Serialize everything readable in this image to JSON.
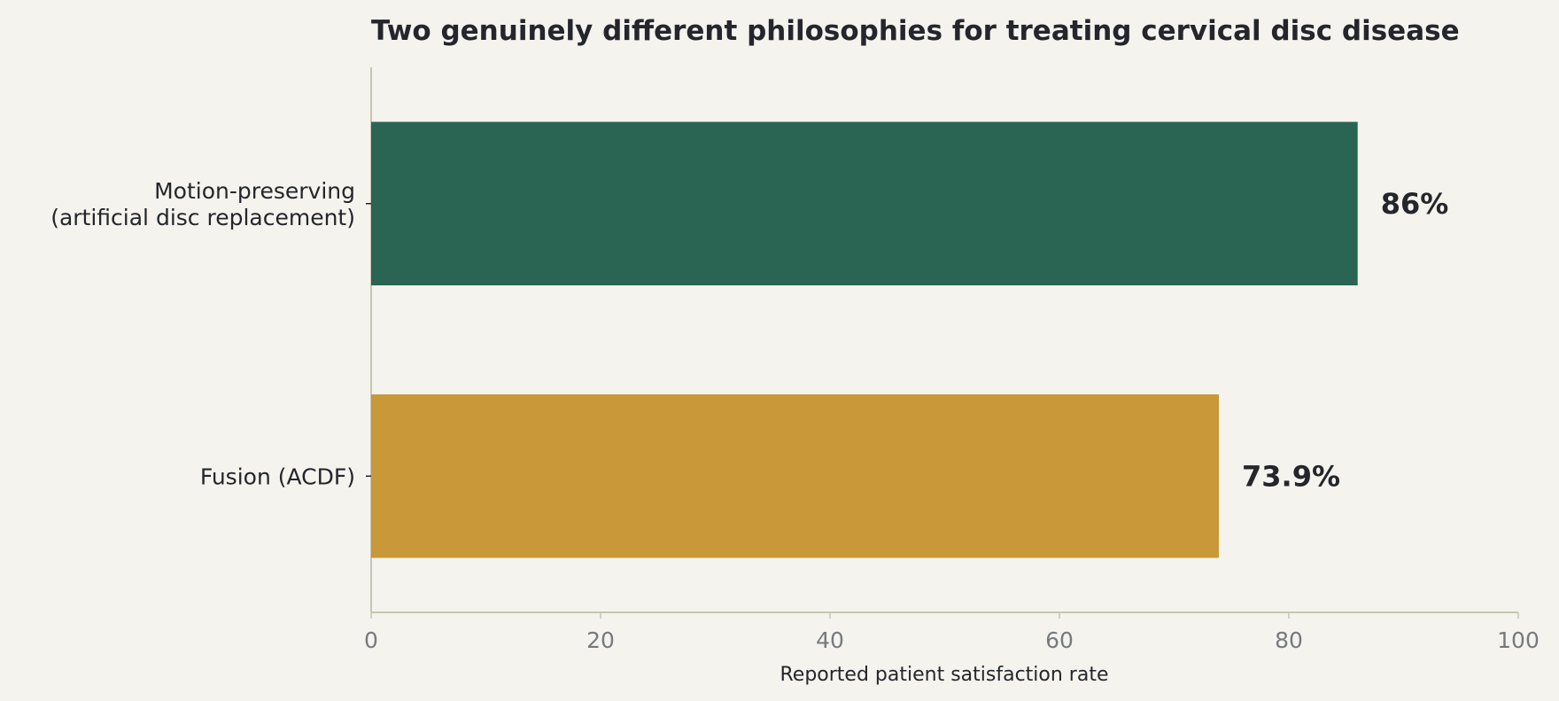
{
  "chart_data": {
    "type": "bar",
    "orientation": "horizontal",
    "title": "Two genuinely different philosophies for treating cervical disc disease",
    "xlabel": "Reported patient satisfaction rate",
    "ylabel": "",
    "xlim": [
      0,
      100
    ],
    "xticks": [
      0,
      20,
      40,
      60,
      80,
      100
    ],
    "categories": [
      [
        "Motion-preserving",
        "(artificial disc replacement)"
      ],
      [
        "Fusion (ACDF)"
      ]
    ],
    "values": [
      86,
      73.9
    ],
    "data_labels": [
      "86%",
      "73.9%"
    ],
    "colors": [
      "#2a6452",
      "#c99839"
    ],
    "grid": false,
    "legend": "none"
  },
  "style": {
    "background": "#f4f3ee",
    "axis_color": "#c8c6ae",
    "text_color": "#24262b",
    "tick_color": "#767a7e"
  }
}
